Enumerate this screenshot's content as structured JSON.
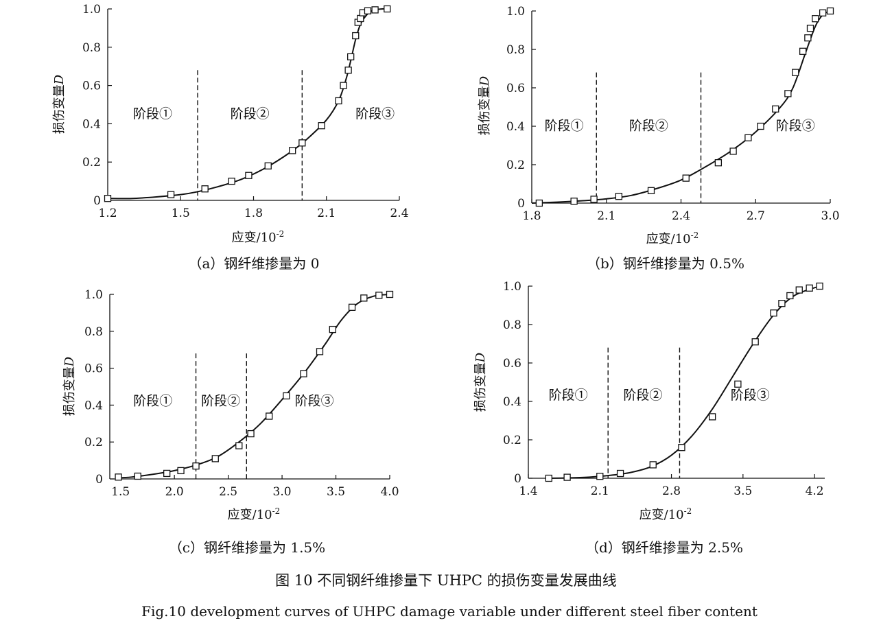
{
  "figure": {
    "title_cn": "图 10   不同钢纤维掺量下 UHPC 的损伤变量发展曲线",
    "title_en": "Fig.10    development curves of UHPC damage variable under different steel fiber content"
  },
  "chart_data": [
    {
      "type": "line",
      "caption": "（a）钢纤维掺量为 0",
      "xlabel": "应变/10",
      "xlabel_sup": "-2",
      "ylabel": "损伤变量",
      "ylabel_var": "D",
      "xlim": [
        1.2,
        2.4
      ],
      "ylim": [
        0,
        1.0
      ],
      "xticks": [
        "1.2",
        "1.5",
        "1.8",
        "2.1",
        "2.4"
      ],
      "xtick_values": [
        1.2,
        1.5,
        1.8,
        2.1,
        2.4
      ],
      "yticks": [
        "0",
        "0.2",
        "0.4",
        "0.6",
        "0.8",
        "1.0"
      ],
      "ytick_values": [
        0,
        0.2,
        0.4,
        0.6,
        0.8,
        1.0
      ],
      "stage_boundaries": [
        1.57,
        2.0
      ],
      "stage_labels": [
        "阶段①",
        "阶段②",
        "阶段③"
      ],
      "stage_label_x": [
        1.385,
        1.785,
        2.3
      ],
      "stage_label_y": 0.43,
      "series": [
        {
          "marker": "square",
          "x": [
            1.2,
            1.46,
            1.6,
            1.71,
            1.78,
            1.86,
            1.96,
            2.0,
            2.08,
            2.15,
            2.17,
            2.19,
            2.2,
            2.22,
            2.23,
            2.24,
            2.25,
            2.27,
            2.3,
            2.35
          ],
          "y": [
            0.01,
            0.03,
            0.06,
            0.1,
            0.13,
            0.18,
            0.26,
            0.3,
            0.39,
            0.52,
            0.6,
            0.68,
            0.75,
            0.86,
            0.93,
            0.95,
            0.98,
            0.99,
            0.995,
            1.0
          ]
        },
        {
          "style": "curve",
          "x": [
            1.2,
            1.3,
            1.4,
            1.5,
            1.57,
            1.65,
            1.75,
            1.85,
            1.95,
            2.02,
            2.1,
            2.15,
            2.18,
            2.2,
            2.22,
            2.24,
            2.26,
            2.28,
            2.3,
            2.33,
            2.36
          ],
          "y": [
            0.01,
            0.01,
            0.018,
            0.03,
            0.045,
            0.07,
            0.11,
            0.17,
            0.25,
            0.32,
            0.42,
            0.52,
            0.63,
            0.73,
            0.84,
            0.92,
            0.96,
            0.985,
            0.995,
            1.0,
            1.0
          ]
        }
      ]
    },
    {
      "type": "line",
      "caption": "（b）钢纤维掺量为 0.5%",
      "xlabel": "应变/10",
      "xlabel_sup": "-2",
      "ylabel": "损伤变量",
      "ylabel_var": "D",
      "xlim": [
        1.8,
        3.0
      ],
      "ylim": [
        0,
        1.0
      ],
      "xticks": [
        "1.8",
        "2.1",
        "2.4",
        "2.7",
        "3.0"
      ],
      "xtick_values": [
        1.8,
        2.1,
        2.4,
        2.7,
        3.0
      ],
      "yticks": [
        "0",
        "0.2",
        "0.4",
        "0.6",
        "0.8",
        "1.0"
      ],
      "ytick_values": [
        0,
        0.2,
        0.4,
        0.6,
        0.8,
        1.0
      ],
      "stage_boundaries": [
        2.06,
        2.48
      ],
      "stage_labels": [
        "阶段①",
        "阶段②",
        "阶段③"
      ],
      "stage_label_x": [
        1.93,
        2.27,
        2.86
      ],
      "stage_label_y": 0.38,
      "series": [
        {
          "marker": "square",
          "x": [
            1.83,
            1.97,
            2.05,
            2.15,
            2.28,
            2.42,
            2.55,
            2.61,
            2.67,
            2.72,
            2.78,
            2.83,
            2.86,
            2.89,
            2.91,
            2.92,
            2.94,
            2.97,
            3.0
          ],
          "y": [
            0.0,
            0.01,
            0.02,
            0.035,
            0.065,
            0.13,
            0.21,
            0.27,
            0.34,
            0.4,
            0.49,
            0.57,
            0.68,
            0.79,
            0.86,
            0.91,
            0.96,
            0.99,
            1.0
          ]
        },
        {
          "style": "curve",
          "x": [
            1.8,
            1.9,
            2.0,
            2.1,
            2.2,
            2.3,
            2.4,
            2.5,
            2.6,
            2.7,
            2.8,
            2.85,
            2.9,
            2.94,
            2.97,
            3.0
          ],
          "y": [
            0.0,
            0.005,
            0.012,
            0.022,
            0.04,
            0.075,
            0.12,
            0.19,
            0.27,
            0.37,
            0.5,
            0.6,
            0.78,
            0.92,
            0.98,
            1.0
          ]
        }
      ]
    },
    {
      "type": "line",
      "caption": "（c）钢纤维掺量为 1.5%",
      "xlabel": "应变/10",
      "xlabel_sup": "-2",
      "ylabel": "损伤变量",
      "ylabel_var": "D",
      "xlim": [
        1.4,
        4.0
      ],
      "ylim": [
        0,
        1.0
      ],
      "xticks": [
        "1.5",
        "2.0",
        "2.5",
        "3.0",
        "3.5",
        "4.0"
      ],
      "xtick_values": [
        1.5,
        2.0,
        2.5,
        3.0,
        3.5,
        4.0
      ],
      "yticks": [
        "0",
        "0.2",
        "0.4",
        "0.6",
        "0.8",
        "1.0"
      ],
      "ytick_values": [
        0,
        0.2,
        0.4,
        0.6,
        0.8,
        1.0
      ],
      "stage_boundaries": [
        2.2,
        2.67
      ],
      "stage_labels": [
        "阶段①",
        "阶段②",
        "阶段③"
      ],
      "stage_label_x": [
        1.8,
        2.43,
        3.3
      ],
      "stage_label_y": 0.4,
      "series": [
        {
          "marker": "square",
          "x": [
            1.48,
            1.66,
            1.93,
            2.06,
            2.2,
            2.38,
            2.6,
            2.71,
            2.88,
            3.04,
            3.2,
            3.35,
            3.47,
            3.65,
            3.76,
            3.9,
            4.0
          ],
          "y": [
            0.01,
            0.015,
            0.03,
            0.045,
            0.07,
            0.11,
            0.18,
            0.245,
            0.34,
            0.45,
            0.57,
            0.69,
            0.81,
            0.93,
            0.98,
            0.995,
            1.0
          ]
        },
        {
          "style": "curve",
          "x": [
            1.45,
            1.6,
            1.8,
            2.0,
            2.2,
            2.4,
            2.6,
            2.8,
            3.0,
            3.2,
            3.4,
            3.55,
            3.7,
            3.85,
            4.0
          ],
          "y": [
            0.005,
            0.01,
            0.025,
            0.045,
            0.075,
            0.12,
            0.2,
            0.3,
            0.43,
            0.57,
            0.73,
            0.86,
            0.95,
            0.99,
            1.0
          ]
        }
      ]
    },
    {
      "type": "line",
      "caption": "（d）钢纤维掺量为 2.5%",
      "xlabel": "应变/10",
      "xlabel_sup": "-2",
      "ylabel": "损伤变量",
      "ylabel_var": "D",
      "xlim": [
        1.4,
        4.3
      ],
      "ylim": [
        0,
        1.0
      ],
      "xticks": [
        "1.4",
        "2.1",
        "2.8",
        "3.5",
        "4.2"
      ],
      "xtick_values": [
        1.4,
        2.1,
        2.8,
        3.5,
        4.2
      ],
      "yticks": [
        "0",
        "0.2",
        "0.4",
        "0.6",
        "0.8",
        "1.0"
      ],
      "ytick_values": [
        0,
        0.2,
        0.4,
        0.6,
        0.8,
        1.0
      ],
      "stage_boundaries": [
        2.18,
        2.88
      ],
      "stage_labels": [
        "阶段①",
        "阶段②",
        "阶段③"
      ],
      "stage_label_x": [
        1.79,
        2.52,
        3.57
      ],
      "stage_label_y": 0.41,
      "series": [
        {
          "marker": "square",
          "x": [
            1.6,
            1.78,
            2.1,
            2.3,
            2.62,
            2.9,
            3.2,
            3.45,
            3.62,
            3.8,
            3.88,
            3.96,
            4.05,
            4.15,
            4.25
          ],
          "y": [
            0.0,
            0.005,
            0.01,
            0.025,
            0.07,
            0.16,
            0.32,
            0.49,
            0.71,
            0.86,
            0.91,
            0.95,
            0.98,
            0.99,
            1.0
          ]
        },
        {
          "style": "curve",
          "x": [
            1.6,
            1.8,
            2.0,
            2.2,
            2.4,
            2.6,
            2.8,
            3.0,
            3.2,
            3.4,
            3.6,
            3.8,
            4.0,
            4.25
          ],
          "y": [
            0.0,
            0.002,
            0.006,
            0.015,
            0.03,
            0.06,
            0.12,
            0.22,
            0.36,
            0.53,
            0.7,
            0.85,
            0.95,
            1.0
          ]
        }
      ]
    }
  ]
}
